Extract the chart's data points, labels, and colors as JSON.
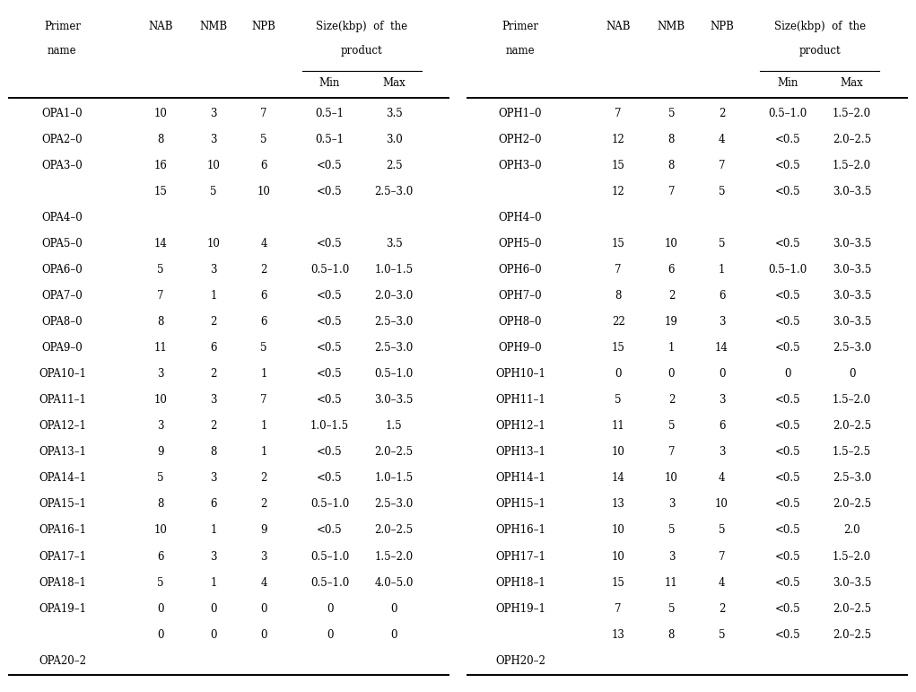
{
  "left_rows": [
    [
      "OPA1–0",
      "10",
      "3",
      "7",
      "0.5–1",
      "3.5"
    ],
    [
      "OPA2–0",
      "8",
      "3",
      "5",
      "0.5–1",
      "3.0"
    ],
    [
      "OPA3–0",
      "16",
      "10",
      "6",
      "<0.5",
      "2.5"
    ],
    [
      "",
      "15",
      "5",
      "10",
      "<0.5",
      "2.5–3.0"
    ],
    [
      "OPA4–0",
      "",
      "",
      "",
      "",
      ""
    ],
    [
      "OPA5–0",
      "14",
      "10",
      "4",
      "<0.5",
      "3.5"
    ],
    [
      "OPA6–0",
      "5",
      "3",
      "2",
      "0.5–1.0",
      "1.0–1.5"
    ],
    [
      "OPA7–0",
      "7",
      "1",
      "6",
      "<0.5",
      "2.0–3.0"
    ],
    [
      "OPA8–0",
      "8",
      "2",
      "6",
      "<0.5",
      "2.5–3.0"
    ],
    [
      "OPA9–0",
      "11",
      "6",
      "5",
      "<0.5",
      "2.5–3.0"
    ],
    [
      "OPA10–1",
      "3",
      "2",
      "1",
      "<0.5",
      "0.5–1.0"
    ],
    [
      "OPA11–1",
      "10",
      "3",
      "7",
      "<0.5",
      "3.0–3.5"
    ],
    [
      "OPA12–1",
      "3",
      "2",
      "1",
      "1.0–1.5",
      "1.5"
    ],
    [
      "OPA13–1",
      "9",
      "8",
      "1",
      "<0.5",
      "2.0–2.5"
    ],
    [
      "OPA14–1",
      "5",
      "3",
      "2",
      "<0.5",
      "1.0–1.5"
    ],
    [
      "OPA15–1",
      "8",
      "6",
      "2",
      "0.5–1.0",
      "2.5–3.0"
    ],
    [
      "OPA16–1",
      "10",
      "1",
      "9",
      "<0.5",
      "2.0–2.5"
    ],
    [
      "OPA17–1",
      "6",
      "3",
      "3",
      "0.5–1.0",
      "1.5–2.0"
    ],
    [
      "OPA18–1",
      "5",
      "1",
      "4",
      "0.5–1.0",
      "4.0–5.0"
    ],
    [
      "OPA19–1",
      "0",
      "0",
      "0",
      "0",
      "0"
    ],
    [
      "",
      "0",
      "0",
      "0",
      "0",
      "0"
    ],
    [
      "OPA20–2",
      "",
      "",
      "",
      "",
      ""
    ]
  ],
  "right_rows": [
    [
      "OPH1–0",
      "7",
      "5",
      "2",
      "0.5–1.0",
      "1.5–2.0"
    ],
    [
      "OPH2–0",
      "12",
      "8",
      "4",
      "<0.5",
      "2.0–2.5"
    ],
    [
      "OPH3–0",
      "15",
      "8",
      "7",
      "<0.5",
      "1.5–2.0"
    ],
    [
      "",
      "12",
      "7",
      "5",
      "<0.5",
      "3.0–3.5"
    ],
    [
      "OPH4–0",
      "",
      "",
      "",
      "",
      ""
    ],
    [
      "OPH5–0",
      "15",
      "10",
      "5",
      "<0.5",
      "3.0–3.5"
    ],
    [
      "OPH6–0",
      "7",
      "6",
      "1",
      "0.5–1.0",
      "3.0–3.5"
    ],
    [
      "OPH7–0",
      "8",
      "2",
      "6",
      "<0.5",
      "3.0–3.5"
    ],
    [
      "OPH8–0",
      "22",
      "19",
      "3",
      "<0.5",
      "3.0–3.5"
    ],
    [
      "OPH9–0",
      "15",
      "1",
      "14",
      "<0.5",
      "2.5–3.0"
    ],
    [
      "OPH10–1",
      "0",
      "0",
      "0",
      "0",
      "0"
    ],
    [
      "OPH11–1",
      "5",
      "2",
      "3",
      "<0.5",
      "1.5–2.0"
    ],
    [
      "OPH12–1",
      "11",
      "5",
      "6",
      "<0.5",
      "2.0–2.5"
    ],
    [
      "OPH13–1",
      "10",
      "7",
      "3",
      "<0.5",
      "1.5–2.5"
    ],
    [
      "OPH14–1",
      "14",
      "10",
      "4",
      "<0.5",
      "2.5–3.0"
    ],
    [
      "OPH15–1",
      "13",
      "3",
      "10",
      "<0.5",
      "2.0–2.5"
    ],
    [
      "OPH16–1",
      "10",
      "5",
      "5",
      "<0.5",
      "2.0"
    ],
    [
      "OPH17–1",
      "10",
      "3",
      "7",
      "<0.5",
      "1.5–2.0"
    ],
    [
      "OPH18–1",
      "15",
      "11",
      "4",
      "<0.5",
      "3.0–3.5"
    ],
    [
      "OPH19–1",
      "7",
      "5",
      "2",
      "<0.5",
      "2.0–2.5"
    ],
    [
      "",
      "13",
      "8",
      "5",
      "<0.5",
      "2.0–2.5"
    ],
    [
      "OPH20–2",
      "",
      "",
      "",
      "",
      ""
    ]
  ],
  "col_header_line1": [
    "Primer",
    "NAB",
    "NMB",
    "NPB",
    "Size(kbp) of the",
    ""
  ],
  "col_header_line2": [
    "name",
    "",
    "",
    "",
    "product",
    ""
  ],
  "col_subheader": [
    "",
    "",
    "",
    "",
    "Min",
    "Max"
  ],
  "font_size": 8.5,
  "font_family": "DejaVu Serif",
  "bg_color": "#ffffff",
  "text_color": "#000000"
}
